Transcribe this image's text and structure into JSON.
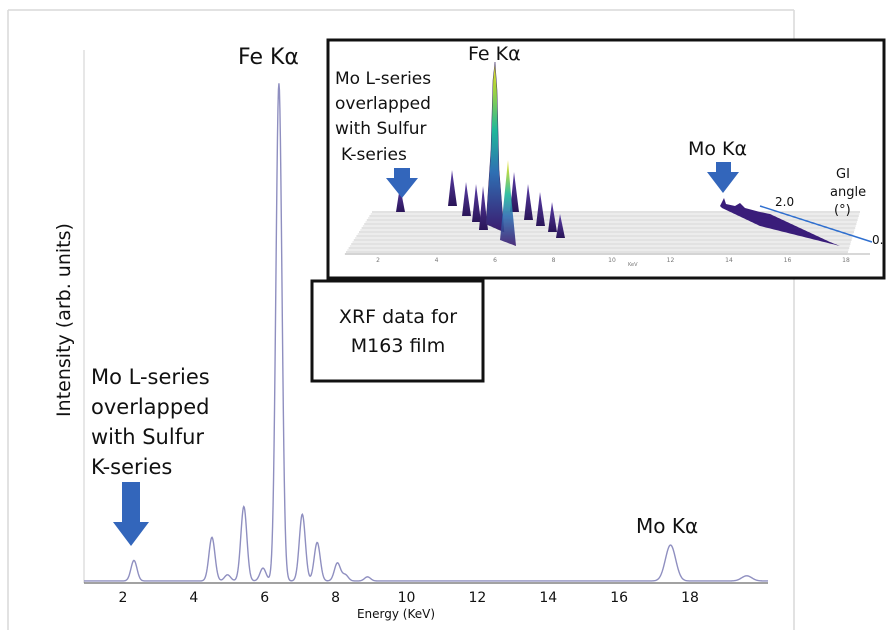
{
  "chart_data": {
    "type": "line",
    "xlabel": "Energy (KeV)",
    "ylabel": "Intensity (arb. units)",
    "xlim": [
      0.9,
      20.2
    ],
    "ylim": [
      0,
      100
    ],
    "xticks": [
      "2",
      "4",
      "6",
      "8",
      "10",
      "12",
      "14",
      "16",
      "18"
    ],
    "xtick_values": [
      2,
      4,
      6,
      8,
      10,
      12,
      14,
      16,
      18
    ],
    "grid": false,
    "color": "#8f8fc0",
    "peaks": [
      {
        "x": 2.31,
        "y": 4.0
      },
      {
        "x": 4.51,
        "y": 8.5
      },
      {
        "x": 4.95,
        "y": 1.2
      },
      {
        "x": 5.41,
        "y": 14.5
      },
      {
        "x": 5.95,
        "y": 2.5
      },
      {
        "x": 6.4,
        "y": 97.0
      },
      {
        "x": 7.06,
        "y": 13.0
      },
      {
        "x": 7.48,
        "y": 7.5
      },
      {
        "x": 8.05,
        "y": 3.5
      },
      {
        "x": 8.27,
        "y": 1.2
      },
      {
        "x": 8.9,
        "y": 0.8
      },
      {
        "x": 17.45,
        "y": 7.0
      },
      {
        "x": 19.6,
        "y": 1.0
      }
    ],
    "annotations": {
      "fe_ka": "Fe Kα",
      "mo_ka": "Mo Kα",
      "mo_l": [
        "Mo L-series",
        "overlapped",
        "with Sulfur",
        "K-series"
      ],
      "xrf_box": [
        "XRF data for",
        "M163 film"
      ]
    },
    "inset": {
      "fe_ka": "Fe Kα",
      "mo_ka": "Mo Kα",
      "mo_l": [
        "Mo L-series",
        "overlapped",
        "with Sulfur",
        "K-series"
      ],
      "gi_label": [
        "GI",
        "angle",
        "(°)"
      ],
      "angle_max": "2.0",
      "angle_min": "0.",
      "xticks": [
        "2",
        "4",
        "6",
        "8",
        "10",
        "12",
        "14",
        "16",
        "18"
      ],
      "xunit": "KeV"
    },
    "arrow_color": "#3366bb"
  }
}
